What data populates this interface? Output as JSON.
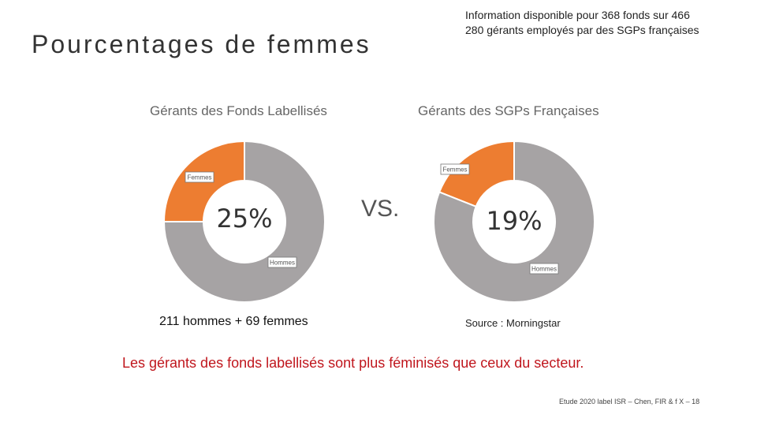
{
  "slide": {
    "title": "Pourcentages de femmes",
    "info_line1": "Information disponible pour 368 fonds sur 466",
    "info_line2": "280 gérants employés par des SGPs françaises",
    "vs": "VS.",
    "note_left": "211 hommes + 69 femmes",
    "source": "Source : Morningstar",
    "conclusion": "Les gérants des fonds labellisés sont plus féminisés que ceux du secteur.",
    "footer": "Etude 2020 label ISR – Chen, FIR & f X – 18"
  },
  "colors": {
    "women": "#ED7D31",
    "men": "#A6A3A4",
    "conclusion": "#C0161D"
  },
  "chart_data": [
    {
      "type": "pie",
      "title": "Gérants des Fonds Labellisés",
      "center_label": "25%",
      "slices": [
        {
          "label": "Femmes",
          "value": 25,
          "color": "#ED7D31"
        },
        {
          "label": "Hommes",
          "value": 75,
          "color": "#A6A3A4"
        }
      ]
    },
    {
      "type": "pie",
      "title": "Gérants des SGPs Françaises",
      "center_label": "19%",
      "slices": [
        {
          "label": "Femmes",
          "value": 19,
          "color": "#ED7D31"
        },
        {
          "label": "Hommes",
          "value": 81,
          "color": "#A6A3A4"
        }
      ]
    }
  ]
}
